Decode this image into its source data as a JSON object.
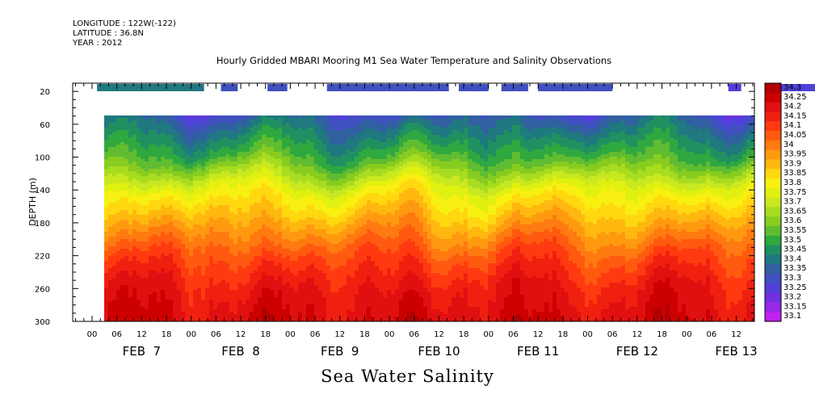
{
  "header": {
    "longitude": "LONGITUDE : 122W(-122)",
    "latitude": "LATITUDE : 36.8N",
    "year": "YEAR : 2012"
  },
  "title": "Hourly Gridded MBARI Mooring M1 Sea Water Temperature and Salinity Observations",
  "bottom_title": "Sea Water Salinity",
  "chart_data": {
    "type": "heatmap",
    "title": "Hourly Gridded MBARI Mooring M1 Sea Water Temperature and Salinity Observations",
    "xlabel": "",
    "ylabel": "DEPTH (m)",
    "variable": "Sea Water Salinity",
    "y_axis": {
      "inverted": true,
      "range": [
        10,
        300
      ],
      "ticks": [
        20,
        60,
        100,
        140,
        180,
        220,
        260,
        300
      ]
    },
    "x_axis": {
      "hour_ticks": [
        "00",
        "06",
        "12",
        "18",
        "00",
        "06",
        "12",
        "18",
        "00",
        "06",
        "12",
        "18",
        "00",
        "06",
        "12",
        "18",
        "00",
        "06",
        "12",
        "18",
        "00",
        "06",
        "12",
        "18",
        "00",
        "06",
        "12"
      ],
      "day_labels": [
        "FEB  7",
        "FEB  8",
        "FEB  9",
        "FEB 10",
        "FEB 11",
        "FEB 12",
        "FEB 13"
      ]
    },
    "colorbar": {
      "levels": [
        "34.3",
        "34.25",
        "34.2",
        "34.15",
        "34.1",
        "34.05",
        "34",
        "33.95",
        "33.9",
        "33.85",
        "33.8",
        "33.75",
        "33.7",
        "33.65",
        "33.6",
        "33.55",
        "33.5",
        "33.45",
        "33.4",
        "33.35",
        "33.3",
        "33.25",
        "33.2",
        "33.15",
        "33.1"
      ],
      "colors": [
        "#b00000",
        "#cc0000",
        "#e01010",
        "#f02010",
        "#ff3a10",
        "#ff5a10",
        "#ff7a10",
        "#ff9a10",
        "#ffb810",
        "#ffd810",
        "#f8f010",
        "#e0f010",
        "#c8e820",
        "#a8dc20",
        "#88cc20",
        "#60bc30",
        "#30a840",
        "#209060",
        "#207880",
        "#3060a0",
        "#4050c0",
        "#5040d8",
        "#7030e0",
        "#9828e8",
        "#c020f0"
      ]
    },
    "near_surface_segments_20m": [
      [
        0.05,
        1.13
      ],
      [
        1.3,
        1.47
      ],
      [
        1.77,
        1.97
      ],
      [
        2.37,
        3.6
      ],
      [
        3.7,
        4.0
      ],
      [
        4.13,
        4.4
      ],
      [
        4.5,
        5.25
      ],
      [
        6.42,
        6.55
      ],
      [
        6.85,
        7.65
      ]
    ],
    "depth_profile": [
      {
        "depth": 40,
        "salinity": 33.3
      },
      {
        "depth": 60,
        "salinity": 33.4
      },
      {
        "depth": 100,
        "salinity": 33.55
      },
      {
        "depth": 140,
        "salinity": 33.8
      },
      {
        "depth": 180,
        "salinity": 33.95
      },
      {
        "depth": 220,
        "salinity": 34.1
      },
      {
        "depth": 260,
        "salinity": 34.2
      },
      {
        "depth": 300,
        "salinity": 34.25
      }
    ]
  }
}
